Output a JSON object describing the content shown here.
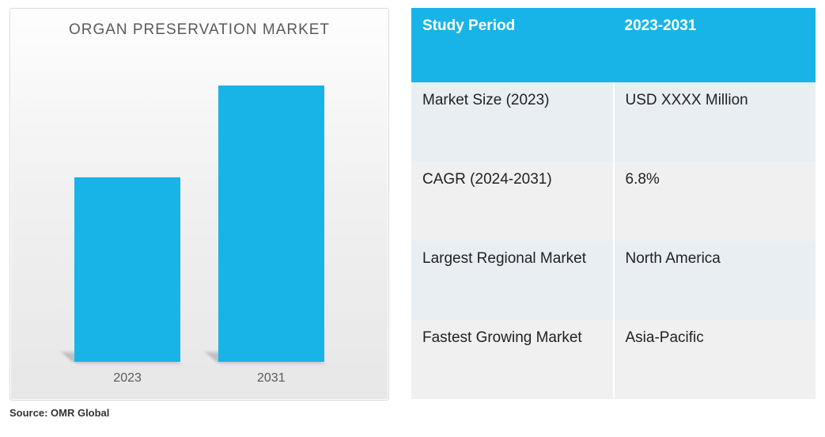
{
  "chart": {
    "type": "bar",
    "title": "ORGAN PRESERVATION MARKET",
    "title_fontsize": 19,
    "title_color": "#5a5a5a",
    "background_gradient": [
      "#fefefe",
      "#f1f1f1",
      "#e7e7e7"
    ],
    "border_color": "#d9d9d9",
    "bars": [
      {
        "label": "2023",
        "value": 60,
        "color": "#18b4e8",
        "left_pct": 17,
        "width_pct": 28
      },
      {
        "label": "2031",
        "value": 90,
        "color": "#18b4e8",
        "left_pct": 55,
        "width_pct": 28
      }
    ],
    "ylim": [
      0,
      100
    ],
    "year_label_fontsize": 16,
    "year_label_color": "#5a5a5a",
    "shadow_color": "rgba(0,0,0,0.18)"
  },
  "source": "Source: OMR Global",
  "table": {
    "header_bg": "#18b4e8",
    "header_color": "#ffffff",
    "row_odd_bg": "#e9eef3",
    "row_even_bg": "#f0f0f0",
    "text_color": "#222222",
    "fontsize": 19,
    "header": {
      "col1": "Study Period",
      "col2": "2023-2031"
    },
    "rows": [
      {
        "label": "Market Size (2023)",
        "value": "USD XXXX Million"
      },
      {
        "label": "CAGR (2024-2031)",
        "value": "6.8%"
      },
      {
        "label": "Largest Regional Market",
        "value": "North America"
      },
      {
        "label": "Fastest Growing Market",
        "value": "Asia-Pacific"
      }
    ]
  }
}
